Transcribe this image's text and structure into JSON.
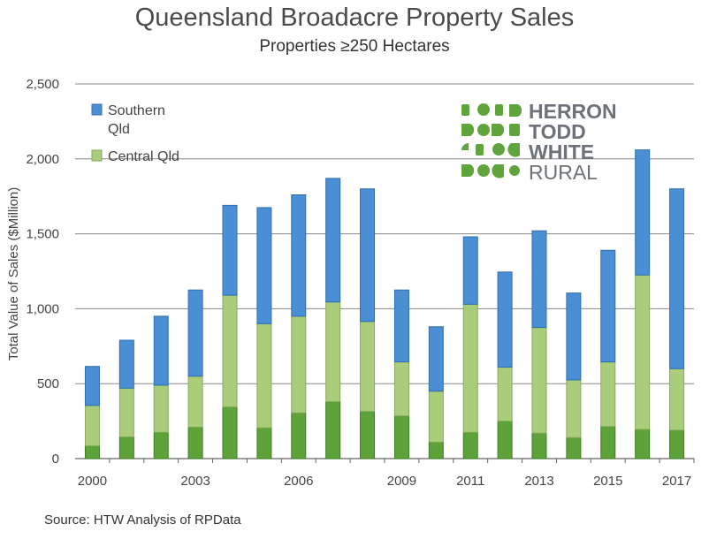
{
  "header": {
    "title": "Queensland Broadacre Property Sales",
    "subtitle": "Properties ≥250 Hectares"
  },
  "footer": {
    "source": "Source: HTW Analysis of RPData"
  },
  "logo": {
    "lines": [
      "HERRON",
      "TODD",
      "WHITE",
      "RURAL"
    ],
    "color": "#5fa43c"
  },
  "colors": {
    "southern": "#4a8fd6",
    "central": "#aacd7c",
    "dark_green": "#5ea33a",
    "grid": "#888888"
  },
  "chart_data": {
    "type": "bar",
    "stacked": true,
    "ylabel": "Total Value of Sales ($Million)",
    "ylim": [
      0,
      2500
    ],
    "yticks": [
      0,
      500,
      1000,
      1500,
      2000,
      2500
    ],
    "ytick_labels": [
      "0",
      "500",
      "1,000",
      "1,500",
      "2,000",
      "2,500"
    ],
    "categories": [
      "2000",
      "2001",
      "2002",
      "2003",
      "2004",
      "2005",
      "2006",
      "2007",
      "2008",
      "2009",
      "2010",
      "2011",
      "2012",
      "2013",
      "2014",
      "2015",
      "2016",
      "2017"
    ],
    "xtick_labels": [
      "2000",
      "",
      "",
      "2003",
      "",
      "",
      "2006",
      "",
      "",
      "2009",
      "",
      "2011",
      "",
      "2013",
      "",
      "2015",
      "",
      "2017"
    ],
    "legend": {
      "placement": "top-left"
    },
    "series": [
      {
        "segment": "dark",
        "values": [
          85,
          145,
          175,
          210,
          345,
          205,
          305,
          380,
          315,
          285,
          110,
          175,
          250,
          170,
          140,
          215,
          195,
          190
        ]
      },
      {
        "name": "Central Qld",
        "values": [
          270,
          325,
          315,
          340,
          745,
          695,
          645,
          665,
          600,
          360,
          340,
          855,
          360,
          705,
          385,
          430,
          1030,
          410
        ]
      },
      {
        "name": "Southern Qld",
        "values": [
          260,
          320,
          460,
          575,
          600,
          775,
          810,
          825,
          885,
          480,
          430,
          450,
          635,
          645,
          580,
          745,
          835,
          1200
        ]
      }
    ]
  }
}
